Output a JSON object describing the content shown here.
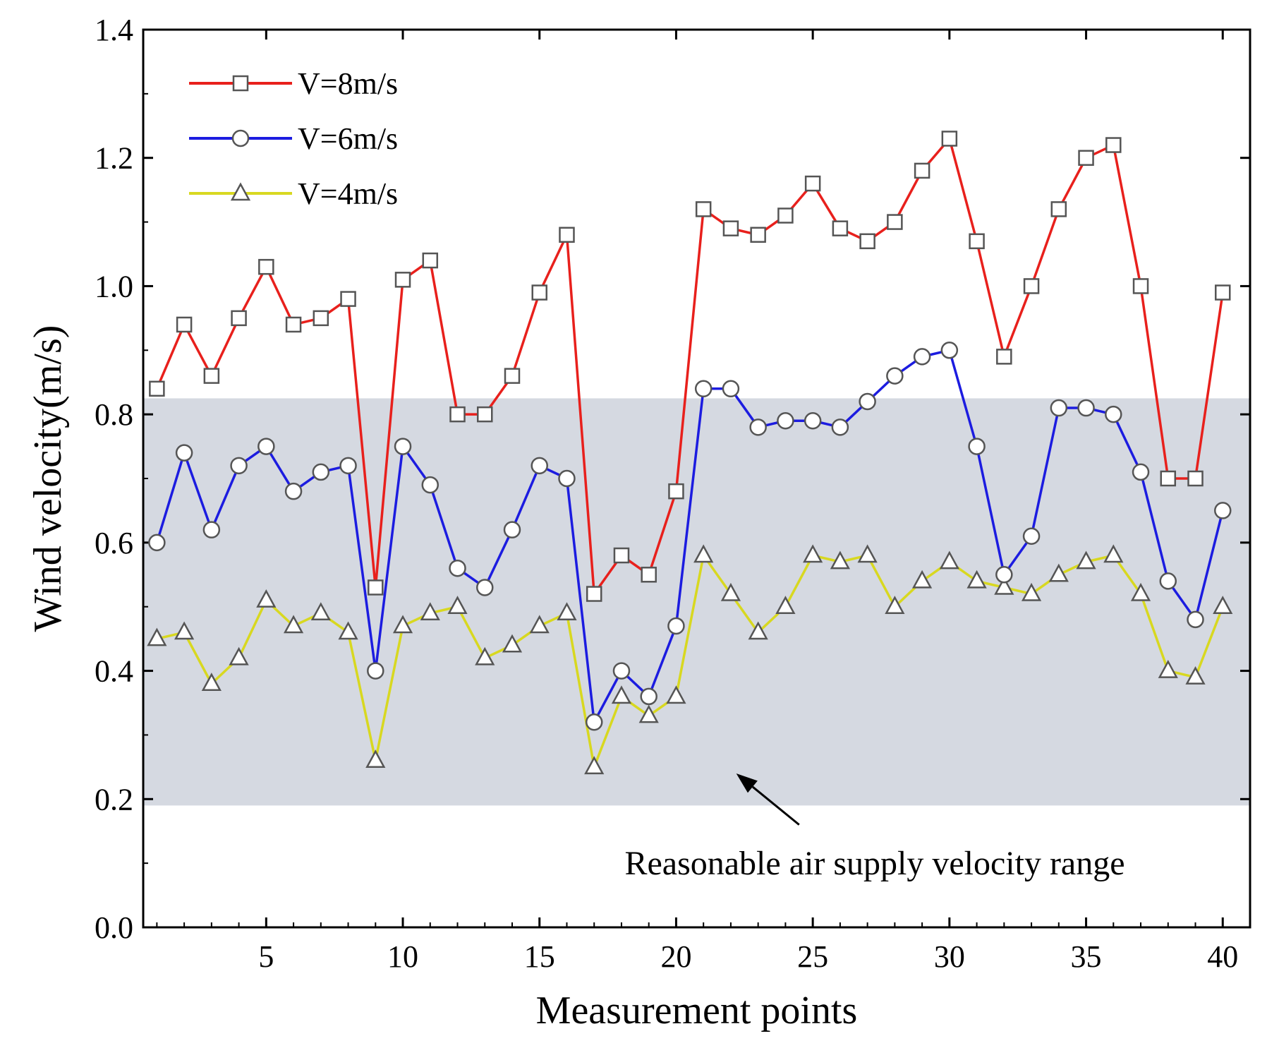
{
  "chart_data": {
    "type": "line",
    "title": "",
    "xlabel": "Measurement points",
    "ylabel": "Wind velocity(m/s)",
    "xlim": [
      0.5,
      41
    ],
    "ylim": [
      0,
      1.4
    ],
    "xticks": [
      5,
      10,
      15,
      20,
      25,
      30,
      35,
      40
    ],
    "xtick_labels": [
      "5",
      "10",
      "15",
      "20",
      "25",
      "30",
      "35",
      "40"
    ],
    "yticks": [
      0.0,
      0.2,
      0.4,
      0.6,
      0.8,
      1.0,
      1.2,
      1.4
    ],
    "ytick_labels": [
      "0.0",
      "0.2",
      "0.4",
      "0.6",
      "0.8",
      "1.0",
      "1.2",
      "1.4"
    ],
    "grid": false,
    "legend_position": "top-left",
    "x": [
      1,
      2,
      3,
      4,
      5,
      6,
      7,
      8,
      9,
      10,
      11,
      12,
      13,
      14,
      15,
      16,
      17,
      18,
      19,
      20,
      21,
      22,
      23,
      24,
      25,
      26,
      27,
      28,
      29,
      30,
      31,
      32,
      33,
      34,
      35,
      36,
      37,
      38,
      39,
      40
    ],
    "series": [
      {
        "name": "V=8m/s",
        "color": "#e8201c",
        "marker": "square",
        "values": [
          0.84,
          0.94,
          0.86,
          0.95,
          1.03,
          0.94,
          0.95,
          0.98,
          0.53,
          1.01,
          1.04,
          0.8,
          0.8,
          0.86,
          0.99,
          1.08,
          0.52,
          0.58,
          0.55,
          0.68,
          1.12,
          1.09,
          1.08,
          1.11,
          1.16,
          1.09,
          1.07,
          1.1,
          1.18,
          1.23,
          1.07,
          0.89,
          1.0,
          1.12,
          1.2,
          1.22,
          1.0,
          0.7,
          0.7,
          0.99
        ]
      },
      {
        "name": "V=6m/s",
        "color": "#1c1ce0",
        "marker": "circle",
        "values": [
          0.6,
          0.74,
          0.62,
          0.72,
          0.75,
          0.68,
          0.71,
          0.72,
          0.4,
          0.75,
          0.69,
          0.56,
          0.53,
          0.62,
          0.72,
          0.7,
          0.32,
          0.4,
          0.36,
          0.47,
          0.84,
          0.84,
          0.78,
          0.79,
          0.79,
          0.78,
          0.82,
          0.86,
          0.89,
          0.9,
          0.75,
          0.55,
          0.61,
          0.81,
          0.81,
          0.8,
          0.71,
          0.54,
          0.48,
          0.65
        ]
      },
      {
        "name": "V=4m/s",
        "color": "#d8d820",
        "marker": "triangle",
        "values": [
          0.45,
          0.46,
          0.38,
          0.42,
          0.51,
          0.47,
          0.49,
          0.46,
          0.26,
          0.47,
          0.49,
          0.5,
          0.42,
          0.44,
          0.47,
          0.49,
          0.25,
          0.36,
          0.33,
          0.36,
          0.58,
          0.52,
          0.46,
          0.5,
          0.58,
          0.57,
          0.58,
          0.5,
          0.54,
          0.57,
          0.54,
          0.53,
          0.52,
          0.55,
          0.57,
          0.58,
          0.52,
          0.4,
          0.39,
          0.5
        ]
      }
    ],
    "shaded_band": {
      "y_range": [
        0.19,
        0.825
      ],
      "color": "#d5d9e1"
    },
    "annotation": {
      "text": "Reasonable air supply velocity range",
      "arrow_target": [
        22.2,
        0.24
      ],
      "arrow_tail": [
        24.5,
        0.16
      ]
    }
  }
}
